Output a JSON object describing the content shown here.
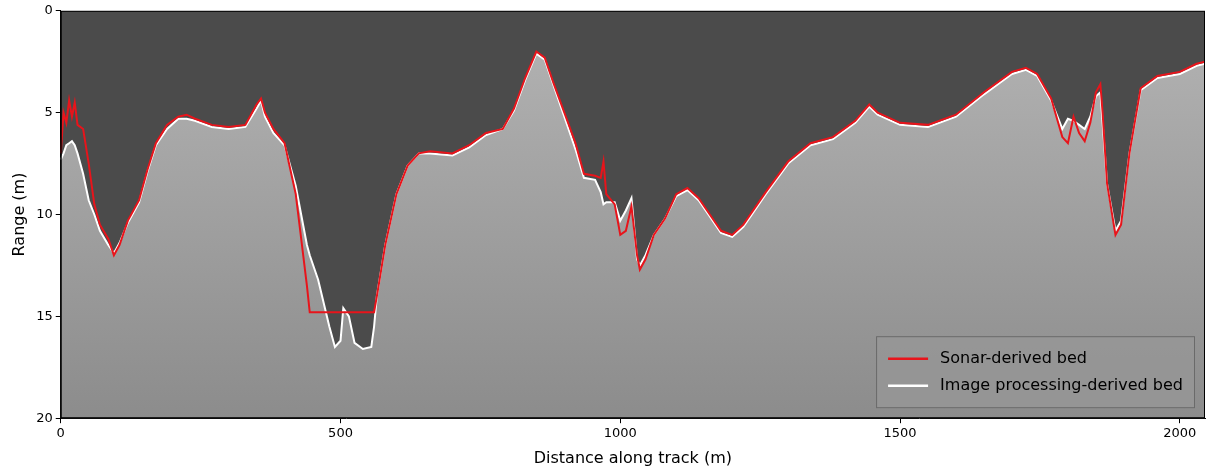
{
  "chart_data": {
    "type": "line",
    "x_label": "Distance along track (m)",
    "y_label": "Range (m)",
    "x": [
      0,
      5,
      10,
      15,
      20,
      25,
      30,
      40,
      50,
      60,
      70,
      85,
      95,
      105,
      120,
      140,
      155,
      170,
      190,
      210,
      225,
      240,
      270,
      300,
      330,
      350,
      358,
      365,
      380,
      400,
      420,
      440,
      445,
      460,
      480,
      490,
      500,
      505,
      515,
      525,
      540,
      555,
      560,
      565,
      580,
      600,
      620,
      640,
      660,
      700,
      730,
      760,
      790,
      810,
      830,
      850,
      865,
      880,
      900,
      920,
      935,
      955,
      965,
      970,
      975,
      990,
      1000,
      1010,
      1020,
      1030,
      1035,
      1045,
      1060,
      1080,
      1100,
      1120,
      1140,
      1160,
      1180,
      1200,
      1220,
      1260,
      1300,
      1340,
      1380,
      1420,
      1445,
      1460,
      1500,
      1550,
      1600,
      1650,
      1700,
      1725,
      1745,
      1770,
      1790,
      1800,
      1810,
      1820,
      1830,
      1840,
      1850,
      1858,
      1862,
      1870,
      1885,
      1895,
      1910,
      1930,
      1960,
      2000,
      2030,
      2045
    ],
    "series": [
      {
        "name": "Sonar-derived bed",
        "color": "#e8141b",
        "values": [
          7.0,
          5.0,
          5.5,
          4.4,
          5.2,
          4.5,
          5.6,
          5.8,
          7.5,
          9.5,
          10.5,
          11.2,
          12.0,
          11.5,
          10.3,
          9.3,
          7.8,
          6.5,
          5.6,
          5.2,
          5.1,
          5.3,
          5.6,
          5.7,
          5.6,
          4.6,
          4.3,
          5.0,
          5.8,
          6.5,
          9.0,
          13.5,
          14.8,
          14.8,
          14.8,
          14.8,
          14.8,
          14.8,
          14.8,
          14.8,
          14.8,
          14.8,
          14.8,
          14.0,
          11.5,
          9.0,
          7.6,
          7.0,
          6.9,
          7.0,
          6.6,
          6.0,
          5.8,
          4.8,
          3.3,
          2.0,
          2.3,
          3.5,
          5.0,
          6.5,
          8.0,
          8.1,
          8.2,
          7.4,
          9.0,
          9.5,
          11.0,
          10.8,
          9.6,
          12.0,
          12.7,
          12.2,
          11.0,
          10.2,
          9.0,
          8.7,
          9.2,
          10.0,
          10.8,
          11.0,
          10.5,
          8.9,
          7.4,
          6.5,
          6.2,
          5.4,
          4.6,
          5.0,
          5.5,
          5.6,
          5.1,
          4.0,
          3.0,
          2.8,
          3.1,
          4.3,
          6.2,
          6.5,
          5.2,
          6.0,
          6.4,
          5.5,
          4.0,
          3.6,
          5.0,
          8.5,
          11.0,
          10.5,
          7.0,
          3.8,
          3.2,
          3.0,
          2.6,
          2.5
        ]
      },
      {
        "name": "Image processing-derived bed",
        "color": "#ffffff",
        "values": [
          7.3,
          7.0,
          6.6,
          6.5,
          6.4,
          6.6,
          7.0,
          8.0,
          9.3,
          10.0,
          10.8,
          11.5,
          11.9,
          11.4,
          10.4,
          9.4,
          7.9,
          6.6,
          5.8,
          5.3,
          5.3,
          5.4,
          5.7,
          5.8,
          5.7,
          4.8,
          4.4,
          5.2,
          6.0,
          6.6,
          8.6,
          11.5,
          12.0,
          13.2,
          15.5,
          16.5,
          16.2,
          14.6,
          15.0,
          16.3,
          16.6,
          16.5,
          15.5,
          14.0,
          11.5,
          9.0,
          7.6,
          7.0,
          7.0,
          7.1,
          6.7,
          6.1,
          5.8,
          4.9,
          3.4,
          2.1,
          2.4,
          3.6,
          5.2,
          6.8,
          8.2,
          8.3,
          8.9,
          9.5,
          9.4,
          9.4,
          10.3,
          9.8,
          9.2,
          12.2,
          12.5,
          12.0,
          11.0,
          10.2,
          9.1,
          8.8,
          9.3,
          10.1,
          10.9,
          11.1,
          10.6,
          9.0,
          7.5,
          6.6,
          6.3,
          5.5,
          4.7,
          5.1,
          5.6,
          5.7,
          5.2,
          4.1,
          3.1,
          2.9,
          3.2,
          4.4,
          5.8,
          5.3,
          5.4,
          5.6,
          5.8,
          5.2,
          4.2,
          4.0,
          5.5,
          8.5,
          10.8,
          10.3,
          7.0,
          3.9,
          3.3,
          3.1,
          2.7,
          2.6
        ]
      }
    ],
    "xlim": [
      0,
      2045
    ],
    "ylim": [
      20,
      0
    ],
    "xticks": [
      0,
      500,
      1000,
      1500,
      2000
    ],
    "yticks": [
      0,
      5,
      10,
      15,
      20
    ],
    "grid": false,
    "legend": "lower right"
  }
}
